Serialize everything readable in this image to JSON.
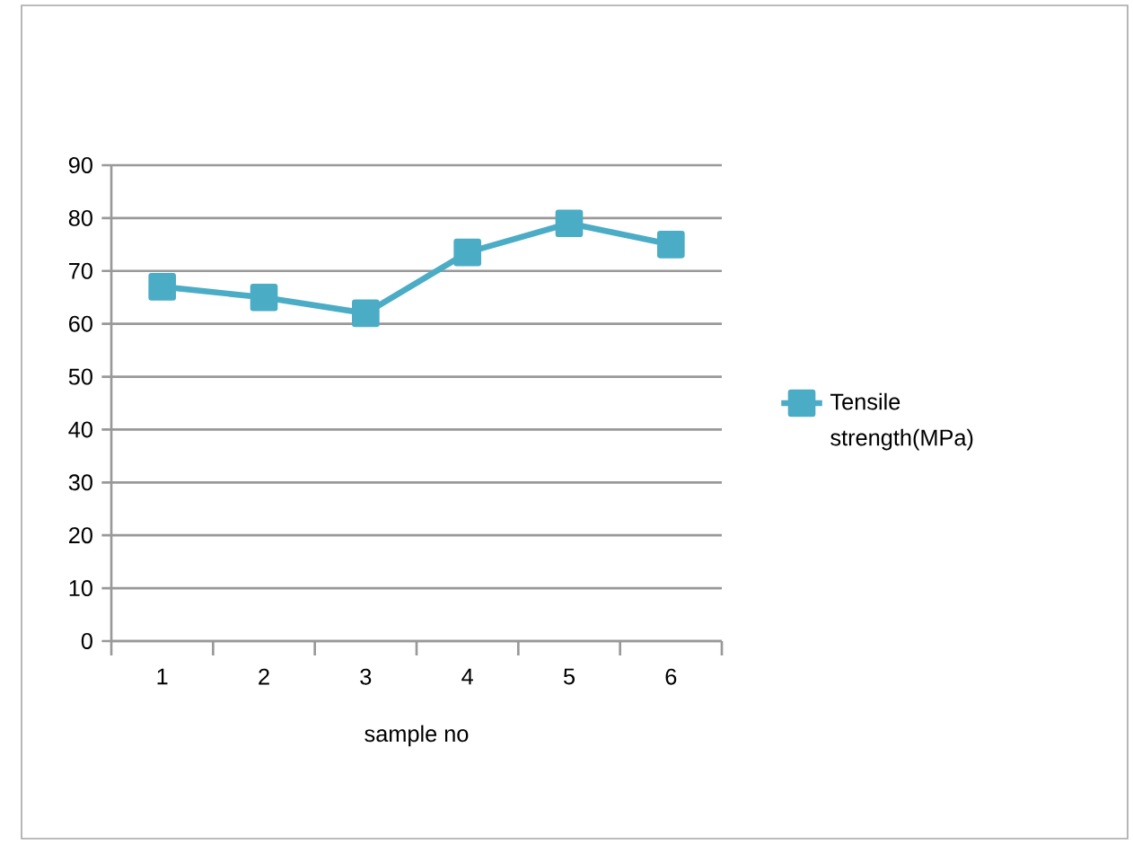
{
  "chart_data": {
    "type": "line",
    "xlabel": "sample no",
    "categories": [
      "1",
      "2",
      "3",
      "4",
      "5",
      "6"
    ],
    "series": [
      {
        "name": "Tensile strength(MPa)",
        "color": "#4bacc6",
        "values": [
          67,
          65,
          62,
          73.5,
          79,
          75
        ]
      }
    ],
    "ylim": [
      0,
      90
    ],
    "yticks": [
      0,
      10,
      20,
      30,
      40,
      50,
      60,
      70,
      80,
      90
    ],
    "grid": "y",
    "legend": "right",
    "marker": "square",
    "line_style": "solid"
  }
}
